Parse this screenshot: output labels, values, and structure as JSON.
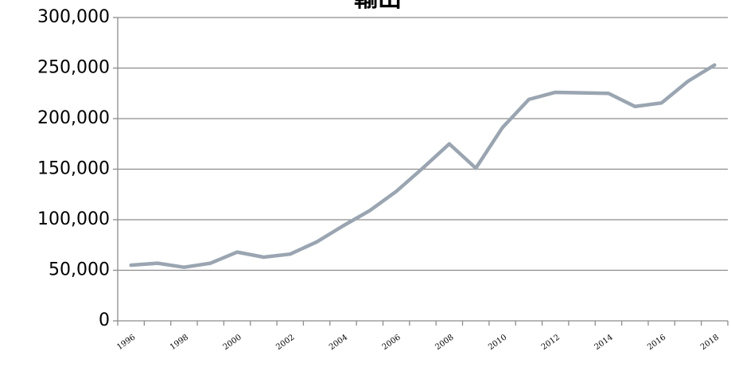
{
  "chart_data": {
    "type": "line",
    "title": "輸出",
    "categories": [
      "1996",
      null,
      "1998",
      null,
      "2000",
      null,
      "2002",
      null,
      "2004",
      null,
      "2006",
      null,
      "2008",
      null,
      "2010",
      null,
      "2012",
      null,
      "2014",
      null,
      "2016",
      null,
      "2018"
    ],
    "series": [
      {
        "name": "輸出",
        "color": "#9aa5b1",
        "values": [
          55000,
          57000,
          53000,
          57000,
          68000,
          63000,
          66000,
          78000,
          94000,
          109000,
          128000,
          151000,
          175000,
          151000,
          191000,
          219000,
          226000,
          225500,
          225000,
          212000,
          215500,
          237000,
          253000
        ]
      }
    ],
    "ylim": [
      0,
      300000
    ],
    "yticks": [
      0,
      {
        "value": 50000,
        "label": "50,000"
      },
      {
        "value": 100000,
        "label": "100,000"
      },
      {
        "value": 150000,
        "label": "150,000"
      },
      {
        "value": 200000,
        "label": "200,000"
      },
      {
        "value": 250000,
        "label": "250,000"
      },
      {
        "value": 300000,
        "label": "300,000"
      }
    ],
    "grid": true
  }
}
